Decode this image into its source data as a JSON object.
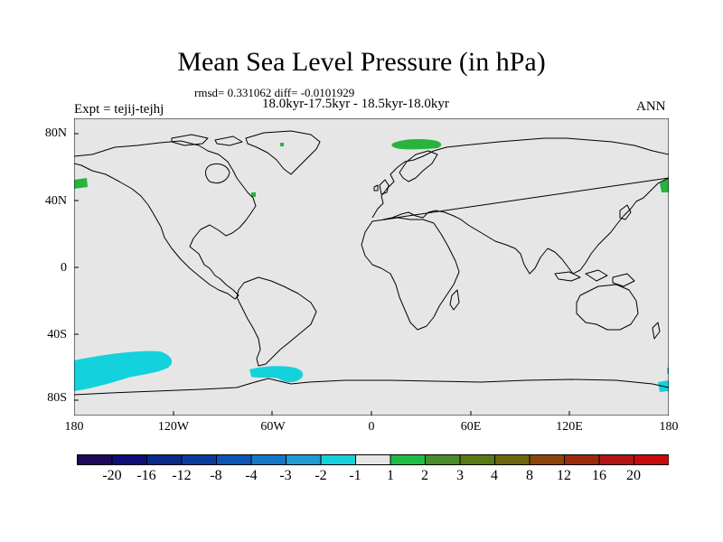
{
  "title": "Mean Sea Level Pressure (in hPa)",
  "stats": "rmsd= 0.331062 diff= -0.0101929",
  "period": "18.0kyr-17.5kyr - 18.5kyr-18.0kyr",
  "experiment": "Expt = tejij-tejhj",
  "season": "ANN",
  "y_axis_labels": [
    "80N",
    "40N",
    "0",
    "40S",
    "80S"
  ],
  "x_axis_labels": [
    "180",
    "120W",
    "60W",
    "0",
    "60E",
    "120E",
    "180"
  ],
  "colorbar_labels": [
    "-20",
    "-16",
    "-12",
    "-8",
    "-4",
    "-3",
    "-2",
    "-1",
    "1",
    "2",
    "3",
    "4",
    "8",
    "12",
    "16",
    "20"
  ],
  "colorbar_colors": [
    "#1c0a5c",
    "#0f0f78",
    "#0c2a8c",
    "#0a3ca0",
    "#0c55b4",
    "#1478c8",
    "#1e9cd2",
    "#14d2dc",
    "#e6e6e6",
    "#1ebe46",
    "#4a8c28",
    "#5a7814",
    "#6e640a",
    "#8c460a",
    "#9c2a0a",
    "#b41414",
    "#c80a0a"
  ],
  "colors": {
    "land_ocean": "#e6e6e6",
    "coast": "#000000",
    "anomaly_negative": "#14d2dc",
    "anomaly_positive": "#28b43c"
  }
}
